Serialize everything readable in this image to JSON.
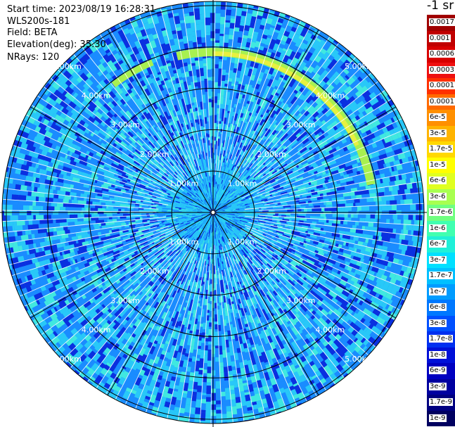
{
  "info": {
    "start_time": "Start time: 2023/08/19 16:28:31",
    "instrument": "WLS200s-181",
    "field": "Field: BETA",
    "elevation": "Elevation(deg): 35.30",
    "nrays": "NRays: 120"
  },
  "colorbar": {
    "unit": "-1 sr",
    "items": [
      {
        "label": "0.0017",
        "color": "#a00000"
      },
      {
        "label": "0.001",
        "color": "#c00000"
      },
      {
        "label": "0.0006",
        "color": "#d80000"
      },
      {
        "label": "0.0003",
        "color": "#ee1010"
      },
      {
        "label": "0.00017",
        "color": "#ff3000"
      },
      {
        "label": "0.0001",
        "color": "#ff6a00"
      },
      {
        "label": "6e-5",
        "color": "#ff9000"
      },
      {
        "label": "3e-5",
        "color": "#ffb400"
      },
      {
        "label": "1.7e-5",
        "color": "#ffd800"
      },
      {
        "label": "1e-5",
        "color": "#ffff00"
      },
      {
        "label": "6e-6",
        "color": "#e0ff20"
      },
      {
        "label": "3e-6",
        "color": "#a8ff50"
      },
      {
        "label": "1.7e-6",
        "color": "#70ff80"
      },
      {
        "label": "1e-6",
        "color": "#40ffb0"
      },
      {
        "label": "6e-7",
        "color": "#20f0d8"
      },
      {
        "label": "3e-7",
        "color": "#00e0ff"
      },
      {
        "label": "1.7e-7",
        "color": "#00c0ff"
      },
      {
        "label": "1e-7",
        "color": "#009cff"
      },
      {
        "label": "6e-8",
        "color": "#0078ff"
      },
      {
        "label": "3e-8",
        "color": "#0050ff"
      },
      {
        "label": "1.7e-8",
        "color": "#0030f0"
      },
      {
        "label": "1e-8",
        "color": "#0010d8"
      },
      {
        "label": "6e-9",
        "color": "#0000c0"
      },
      {
        "label": "3e-9",
        "color": "#0000a0"
      },
      {
        "label": "1.7e-9",
        "color": "#000080"
      },
      {
        "label": "1e-9",
        "color": "#000060"
      }
    ]
  },
  "range_rings": [
    {
      "range_km": 1,
      "label": "1.00km"
    },
    {
      "range_km": 2,
      "label": "2.00km"
    },
    {
      "range_km": 3,
      "label": "3.00km"
    },
    {
      "range_km": 4,
      "label": "4.00km"
    },
    {
      "range_km": 5,
      "label": "5.00km"
    }
  ],
  "max_range_km": 5.1,
  "spoke_step_deg": 30,
  "palette": {
    "background": "#2a6ef0",
    "lowest": "#0a30e0",
    "low": "#1a8cff",
    "mid": "#28c8f8",
    "high": "#40e8e0",
    "band": "#a8f050",
    "band_peak": "#e8f040"
  }
}
